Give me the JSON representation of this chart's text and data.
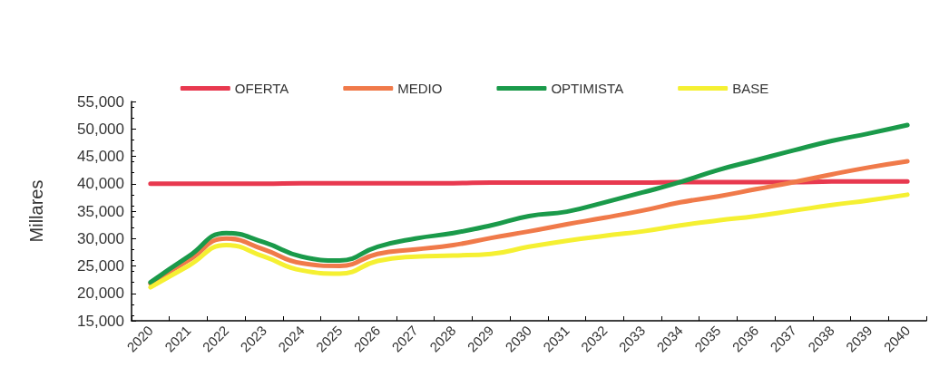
{
  "chart_data": {
    "type": "line",
    "ylabel": "Millares",
    "categories": [
      "2020",
      "2021",
      "2022",
      "2023",
      "2024",
      "2025",
      "2026",
      "2027",
      "2028",
      "2029",
      "2030",
      "2031",
      "2032",
      "2033",
      "2034",
      "2035",
      "2036",
      "2037",
      "2038",
      "2039",
      "2040"
    ],
    "series": [
      {
        "name": "OFERTA",
        "color": "#e8394f",
        "values": [
          40000,
          40000,
          40000,
          40000,
          40100,
          40100,
          40100,
          40100,
          40100,
          40200,
          40200,
          40200,
          40200,
          40200,
          40300,
          40300,
          40300,
          40300,
          40400,
          40400,
          40400
        ]
      },
      {
        "name": "MEDIO",
        "color": "#f07a4a",
        "values": [
          21800,
          26000,
          30000,
          28000,
          25500,
          25000,
          27200,
          28000,
          28800,
          30100,
          31300,
          32600,
          33800,
          35100,
          36600,
          37700,
          39000,
          40300,
          41700,
          43000,
          44100
        ]
      },
      {
        "name": "OPTIMISTA",
        "color": "#1a9a4a",
        "values": [
          22000,
          26700,
          31000,
          29300,
          26700,
          26000,
          28500,
          30000,
          31000,
          32400,
          34100,
          34900,
          36600,
          38400,
          40300,
          42500,
          44300,
          46100,
          47800,
          49200,
          50700
        ]
      },
      {
        "name": "BASE",
        "color": "#f5f032",
        "values": [
          21100,
          25000,
          28800,
          26700,
          24200,
          23600,
          25900,
          26700,
          26900,
          27200,
          28500,
          29600,
          30500,
          31300,
          32400,
          33300,
          34100,
          35100,
          36100,
          37000,
          38000
        ]
      }
    ],
    "ylim": [
      15000,
      55000
    ],
    "yticks": [
      {
        "value": 15000,
        "label": "15,000"
      },
      {
        "value": 20000,
        "label": "20,000"
      },
      {
        "value": 25000,
        "label": "25,000"
      },
      {
        "value": 30000,
        "label": "30,000"
      },
      {
        "value": 35000,
        "label": "35,000"
      },
      {
        "value": 40000,
        "label": "40,000"
      },
      {
        "value": 45000,
        "label": "45,000"
      },
      {
        "value": 50000,
        "label": "50,000"
      },
      {
        "value": 55000,
        "label": "55,000"
      }
    ],
    "grid": false,
    "legend": "top",
    "marker": "none",
    "line_style": "solid"
  }
}
